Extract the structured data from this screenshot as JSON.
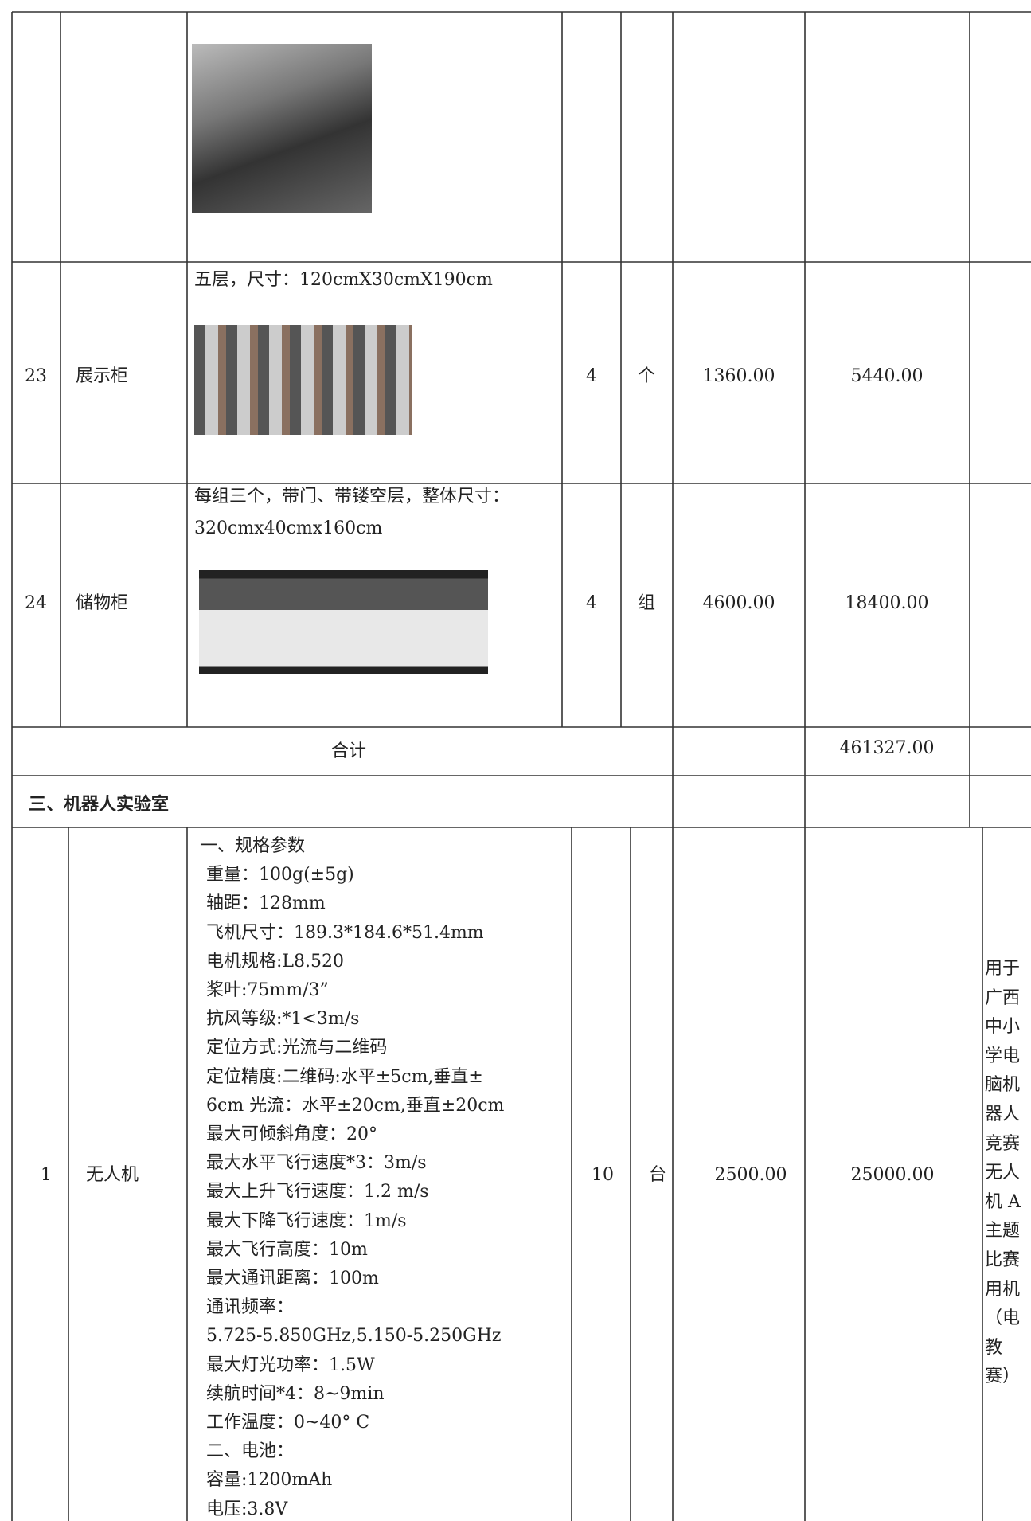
{
  "table": {
    "rows": [
      {},
      {
        "no": "23",
        "name": "展示柜",
        "spec": [
          "五层，尺寸：120cmX30cmX190cm"
        ],
        "qty": "4",
        "unit": "个",
        "price": "1360.00",
        "total": "5440.00"
      },
      {
        "no": "24",
        "name": "储物柜",
        "spec": [
          "每组三个，带门、带镂空层，整体尺寸：",
          "320cmx40cmx160cm"
        ],
        "qty": "4",
        "unit": "组",
        "price": "4600.00",
        "total": "18400.00"
      }
    ],
    "subtotal": {
      "label": "合计",
      "total": "461327.00"
    },
    "section": "三、机器人实验室",
    "items": [
      {
        "no": "1",
        "name": "无人机",
        "spec": [
          "一、规格参数",
          "重量：100g(±5g)",
          "轴距：128mm",
          "飞机尺寸：189.3*184.6*51.4mm",
          "电机规格:L8.520",
          "桨叶:75mm/3”",
          "抗风等级:*1<3m/s",
          "定位方式:光流与二维码",
          "定位精度:二维码:水平±5cm,垂直±",
          "6cm 光流：水平±20cm,垂直±20cm",
          "最大可倾斜角度：20°",
          "最大水平飞行速度*3：3m/s",
          "最大上升飞行速度：1.2 m/s",
          "最大下降飞行速度：1m/s",
          "最大飞行高度：10m",
          "最大通讯距离：100m",
          "通讯频率：",
          "5.725-5.850GHz,5.150-5.250GHz",
          "最大灯光功率：1.5W",
          "续航时间*4：8~9min",
          "工作温度：0~40° C",
          "二、电池：",
          "容量:1200mAh",
          "电压:3.8V"
        ],
        "qty": "10",
        "unit": "台",
        "price": "2500.00",
        "total": "25000.00",
        "note": [
          "用于",
          "广西",
          "中小",
          "学电",
          "脑机",
          "器人",
          "竞赛",
          "无人",
          "机 A",
          "主题",
          "比赛",
          "用机",
          "（电",
          "教",
          "赛）"
        ]
      }
    ]
  }
}
